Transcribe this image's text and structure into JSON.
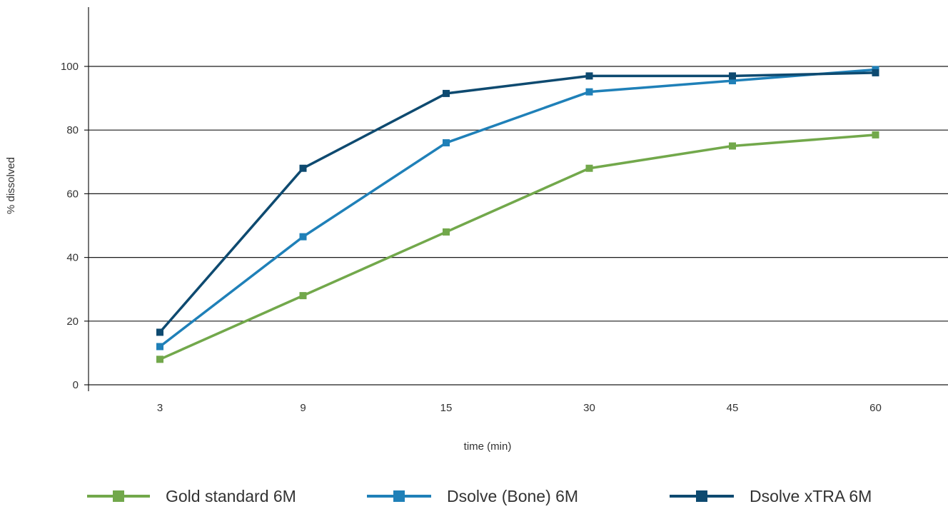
{
  "chart_data": {
    "type": "line",
    "categories": [
      "3",
      "9",
      "15",
      "30",
      "45",
      "60"
    ],
    "xlabel": "time (min)",
    "ylabel": "% dissolved",
    "ylim": [
      0,
      115
    ],
    "yticks": [
      0,
      20,
      40,
      60,
      80,
      100
    ],
    "grid": "horizontal",
    "legend_position": "bottom",
    "series": [
      {
        "name": "Gold standard 6M",
        "color": "#72a84b",
        "values": [
          8,
          28,
          48,
          68,
          75,
          78.5
        ]
      },
      {
        "name": "Dsolve (Bone) 6M",
        "color": "#1f80b8",
        "values": [
          12,
          46.5,
          76,
          92,
          95.5,
          99
        ]
      },
      {
        "name": "Dsolve xTRA 6M",
        "color": "#0e4a70",
        "values": [
          16.5,
          68,
          91.5,
          97,
          97,
          98
        ]
      }
    ]
  }
}
